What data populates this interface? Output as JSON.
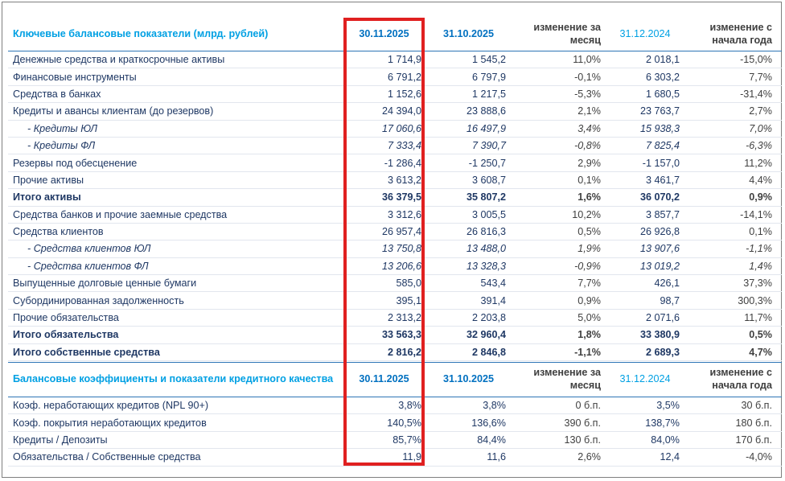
{
  "table1": {
    "header": {
      "title": "Ключевые балансовые показатели (млрд. рублей)",
      "col1": "30.11.2025",
      "col2": "31.10.2025",
      "col3": "изменение за месяц",
      "col4": "31.12.2024",
      "col5": "изменение с начала года"
    },
    "rows": [
      {
        "label": "Денежные средства и краткосрочные активы",
        "v1": "1 714,9",
        "v2": "1 545,2",
        "v3": "11,0%",
        "v4": "2 018,1",
        "v5": "-15,0%"
      },
      {
        "label": "Финансовые инструменты",
        "v1": "6 791,2",
        "v2": "6 797,9",
        "v3": "-0,1%",
        "v4": "6 303,2",
        "v5": "7,7%"
      },
      {
        "label": "Средства в банках",
        "v1": "1 152,6",
        "v2": "1 217,5",
        "v3": "-5,3%",
        "v4": "1 680,5",
        "v5": "-31,4%"
      },
      {
        "label": "Кредиты и авансы клиентам (до резервов)",
        "v1": "24 394,0",
        "v2": "23 888,6",
        "v3": "2,1%",
        "v4": "23 763,7",
        "v5": "2,7%"
      },
      {
        "label": "-  Кредиты ЮЛ",
        "v1": "17 060,6",
        "v2": "16 497,9",
        "v3": "3,4%",
        "v4": "15 938,3",
        "v5": "7,0%"
      },
      {
        "label": "-  Кредиты ФЛ",
        "v1": "7 333,4",
        "v2": "7 390,7",
        "v3": "-0,8%",
        "v4": "7 825,4",
        "v5": "-6,3%"
      },
      {
        "label": "Резервы под обесценение",
        "v1": "-1 286,4",
        "v2": "-1 250,7",
        "v3": "2,9%",
        "v4": "-1 157,0",
        "v5": "11,2%"
      },
      {
        "label": "Прочие активы",
        "v1": "3 613,2",
        "v2": "3 608,7",
        "v3": "0,1%",
        "v4": "3 461,7",
        "v5": "4,4%"
      },
      {
        "label": "Итого активы",
        "v1": "36 379,5",
        "v2": "35 807,2",
        "v3": "1,6%",
        "v4": "36 070,2",
        "v5": "0,9%"
      },
      {
        "label": "Средства банков и прочие заемные средства",
        "v1": "3 312,6",
        "v2": "3 005,5",
        "v3": "10,2%",
        "v4": "3 857,7",
        "v5": "-14,1%"
      },
      {
        "label": "Средства клиентов",
        "v1": "26 957,4",
        "v2": "26 816,3",
        "v3": "0,5%",
        "v4": "26 926,8",
        "v5": "0,1%"
      },
      {
        "label": "-  Средства клиентов ЮЛ",
        "v1": "13 750,8",
        "v2": "13 488,0",
        "v3": "1,9%",
        "v4": "13 907,6",
        "v5": "-1,1%"
      },
      {
        "label": "-  Средства клиентов ФЛ",
        "v1": "13 206,6",
        "v2": "13 328,3",
        "v3": "-0,9%",
        "v4": "13 019,2",
        "v5": "1,4%"
      },
      {
        "label": "Выпущенные долговые ценные бумаги",
        "v1": "585,0",
        "v2": "543,4",
        "v3": "7,7%",
        "v4": "426,1",
        "v5": "37,3%"
      },
      {
        "label": "Субординированная задолженность",
        "v1": "395,1",
        "v2": "391,4",
        "v3": "0,9%",
        "v4": "98,7",
        "v5": "300,3%"
      },
      {
        "label": "Прочие обязательства",
        "v1": "2 313,2",
        "v2": "2 203,8",
        "v3": "5,0%",
        "v4": "2 071,6",
        "v5": "11,7%"
      },
      {
        "label": "Итого обязательства",
        "v1": "33 563,3",
        "v2": "32 960,4",
        "v3": "1,8%",
        "v4": "33 380,9",
        "v5": "0,5%"
      },
      {
        "label": "Итого собственные средства",
        "v1": "2 816,2",
        "v2": "2 846,8",
        "v3": "-1,1%",
        "v4": "2 689,3",
        "v5": "4,7%"
      }
    ]
  },
  "table2": {
    "header": {
      "title": "Балансовые коэффициенты  и показатели кредитного качества",
      "col1": "30.11.2025",
      "col2": "31.10.2025",
      "col3": "изменение за месяц",
      "col4": "31.12.2024",
      "col5": "изменение с начала года"
    },
    "rows": [
      {
        "label": "Коэф. неработающих кредитов (NPL 90+)",
        "v1": "3,8%",
        "v2": "3,8%",
        "v3": "0 б.п.",
        "v4": "3,5%",
        "v5": "30 б.п."
      },
      {
        "label": "Коэф. покрытия неработающих кредитов",
        "v1": "140,5%",
        "v2": "136,6%",
        "v3": "390 б.п.",
        "v4": "138,7%",
        "v5": "180 б.п."
      },
      {
        "label": "Кредиты / Депозиты",
        "v1": "85,7%",
        "v2": "84,4%",
        "v3": "130 б.п.",
        "v4": "84,0%",
        "v5": "170 б.п."
      },
      {
        "label": "Обязательства / Собственные средства",
        "v1": "11,9",
        "v2": "11,6",
        "v3": "2,6%",
        "v4": "12,4",
        "v5": "-4,0%"
      }
    ]
  },
  "colors": {
    "header_blue": "#00a0e3",
    "text_navy": "#1f3864",
    "highlight_red": "#e02020",
    "rule_blue": "#2e75b6"
  }
}
